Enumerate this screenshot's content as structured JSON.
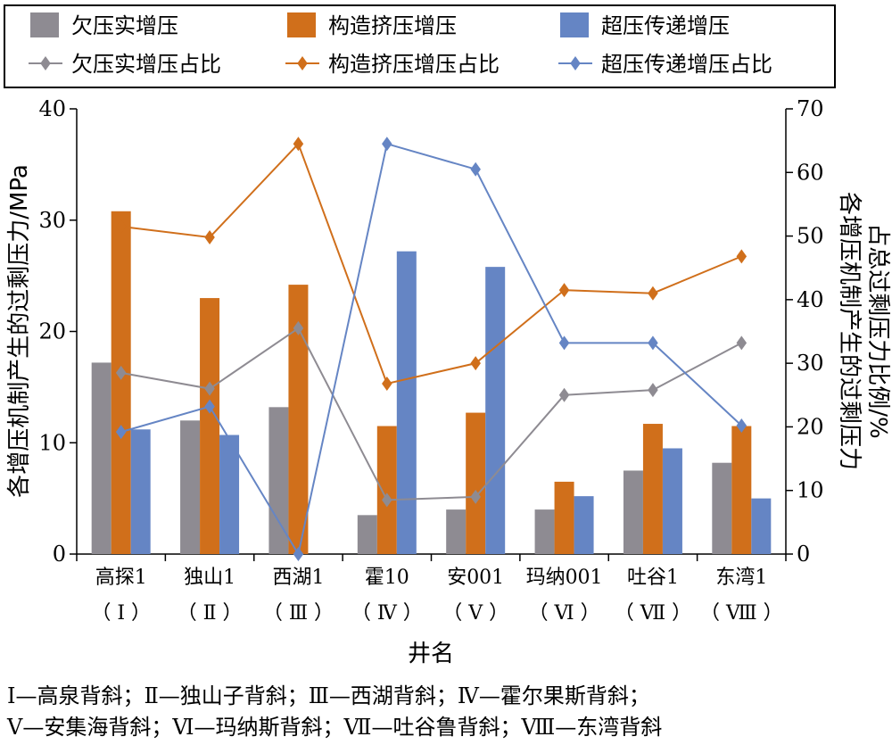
{
  "chart_data": {
    "type": "bar",
    "categories": [
      "高探1",
      "独山1",
      "西湖1",
      "霍10",
      "安001",
      "玛纳001",
      "吐谷1",
      "东湾1"
    ],
    "category_codes": [
      "（ Ⅰ ）",
      "（ Ⅱ ）",
      "（ Ⅲ ）",
      "（ Ⅳ ）",
      "（ Ⅴ ）",
      "（ Ⅵ ）",
      "（ Ⅶ ）",
      "（ Ⅷ ）"
    ],
    "series": [
      {
        "name": "欠压实增压",
        "type": "bar",
        "axis": "left",
        "color": "#8e8b92",
        "values": [
          17.2,
          12.0,
          13.2,
          3.5,
          4.0,
          4.0,
          7.5,
          8.2
        ]
      },
      {
        "name": "构造挤压增压",
        "type": "bar",
        "axis": "left",
        "color": "#d06f1b",
        "values": [
          30.8,
          23.0,
          24.2,
          11.5,
          12.7,
          6.5,
          11.7,
          11.5
        ]
      },
      {
        "name": "超压传递增压",
        "type": "bar",
        "axis": "left",
        "color": "#6585c4",
        "values": [
          11.2,
          10.7,
          0,
          27.2,
          25.8,
          5.2,
          9.5,
          5.0
        ]
      },
      {
        "name": "欠压实增压占比",
        "type": "line",
        "axis": "right",
        "color": "#8e8b92",
        "values": [
          28.5,
          26.0,
          35.5,
          8.5,
          9.0,
          25.0,
          25.8,
          33.2
        ]
      },
      {
        "name": "构造挤压增压占比",
        "type": "line",
        "axis": "right",
        "color": "#d06f1b",
        "values": [
          51.5,
          49.8,
          64.5,
          26.8,
          30.0,
          41.5,
          41.0,
          46.8
        ]
      },
      {
        "name": "超压传递增压占比",
        "type": "line",
        "axis": "right",
        "color": "#6585c4",
        "values": [
          19.2,
          23.2,
          0,
          64.5,
          60.5,
          33.2,
          33.2,
          20.2
        ]
      }
    ],
    "y_left": {
      "label": "各增压机制产生的过剩压力/MPa",
      "ylim": [
        0,
        40
      ],
      "ticks": [
        0,
        10,
        20,
        30,
        40
      ]
    },
    "y_right": {
      "label_line1": "各增压机制产生的过剩压力",
      "label_line2": "占总过剩压力比例/%",
      "ylim": [
        0,
        70
      ],
      "ticks": [
        0,
        10,
        20,
        30,
        40,
        50,
        60,
        70
      ]
    },
    "xlabel": "井名",
    "legend_position": "top"
  },
  "notes": [
    "Ⅰ—高泉背斜；Ⅱ—独山子背斜；Ⅲ—西湖背斜；Ⅳ—霍尔果斯背斜；",
    "Ⅴ—安集海背斜；Ⅵ—玛纳斯背斜；Ⅶ—吐谷鲁背斜；Ⅷ—东湾背斜"
  ]
}
